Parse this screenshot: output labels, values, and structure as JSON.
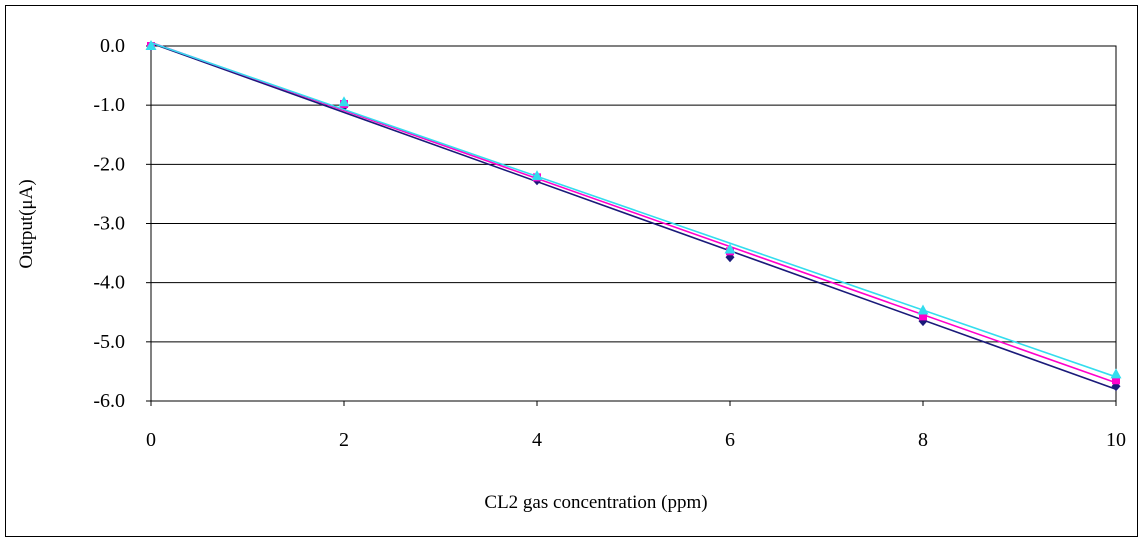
{
  "chart_data": {
    "type": "scatter",
    "title": "",
    "xlabel": "CL2 gas concentration (ppm)",
    "ylabel": "Output(μA)",
    "xlim": [
      0,
      10
    ],
    "ylim": [
      -6.0,
      0.0
    ],
    "x_ticks": [
      0,
      2,
      4,
      6,
      8,
      10
    ],
    "y_ticks": [
      0.0,
      -1.0,
      -2.0,
      -3.0,
      -4.0,
      -5.0,
      -6.0
    ],
    "grid": "horizontal",
    "legend": "none",
    "trendlines": "linear",
    "series": [
      {
        "marker": "diamond",
        "color": "#1a1a7a",
        "x": [
          0,
          2,
          4,
          6,
          8,
          10
        ],
        "y": [
          0.0,
          -1.02,
          -2.27,
          -3.57,
          -4.65,
          -5.75
        ]
      },
      {
        "marker": "square",
        "color": "#ff00cc",
        "x": [
          0,
          2,
          4,
          6,
          8,
          10
        ],
        "y": [
          0.0,
          -0.98,
          -2.22,
          -3.47,
          -4.57,
          -5.65
        ]
      },
      {
        "marker": "triangle",
        "color": "#33ddee",
        "x": [
          0,
          2,
          4,
          6,
          8,
          10
        ],
        "y": [
          0.0,
          -0.95,
          -2.2,
          -3.44,
          -4.47,
          -5.55
        ]
      }
    ]
  }
}
